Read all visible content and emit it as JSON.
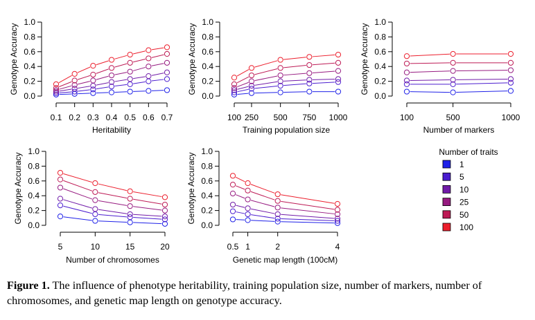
{
  "chart_data": [
    {
      "type": "line",
      "xlabel": "Heritability",
      "ylabel": "Genotype Accuracy",
      "x": [
        0.1,
        0.2,
        0.3,
        0.4,
        0.5,
        0.6,
        0.7
      ],
      "x_tick_labels": [
        "0.1",
        "0.2",
        "0.3",
        "0.4",
        "0.5",
        "0.6",
        "0.7"
      ],
      "xlim": [
        0.1,
        0.7
      ],
      "ylim": [
        0,
        1
      ],
      "y_ticks": [
        "0.0",
        "0.2",
        "0.4",
        "0.6",
        "0.8",
        "1.0"
      ],
      "series": [
        {
          "name": "1",
          "values": [
            0.02,
            0.03,
            0.04,
            0.05,
            0.06,
            0.07,
            0.08
          ]
        },
        {
          "name": "5",
          "values": [
            0.04,
            0.06,
            0.09,
            0.13,
            0.16,
            0.2,
            0.23
          ]
        },
        {
          "name": "10",
          "values": [
            0.06,
            0.1,
            0.14,
            0.19,
            0.23,
            0.27,
            0.32
          ]
        },
        {
          "name": "25",
          "values": [
            0.08,
            0.15,
            0.21,
            0.28,
            0.33,
            0.4,
            0.45
          ]
        },
        {
          "name": "50",
          "values": [
            0.11,
            0.21,
            0.29,
            0.38,
            0.45,
            0.51,
            0.57
          ]
        },
        {
          "name": "100",
          "values": [
            0.16,
            0.3,
            0.41,
            0.49,
            0.56,
            0.62,
            0.66
          ]
        }
      ]
    },
    {
      "type": "line",
      "xlabel": "Training population size",
      "ylabel": "Genotype Accuracy",
      "x": [
        100,
        250,
        500,
        750,
        1000
      ],
      "x_tick_labels": [
        "100",
        "250",
        "500",
        "750",
        "1000"
      ],
      "xlim": [
        100,
        1000
      ],
      "ylim": [
        0,
        1
      ],
      "y_ticks": [
        "0.0",
        "0.2",
        "0.4",
        "0.6",
        "0.8",
        "1.0"
      ],
      "series": [
        {
          "name": "1",
          "values": [
            0.02,
            0.04,
            0.05,
            0.06,
            0.06
          ]
        },
        {
          "name": "5",
          "values": [
            0.05,
            0.1,
            0.14,
            0.17,
            0.19
          ]
        },
        {
          "name": "10",
          "values": [
            0.08,
            0.14,
            0.2,
            0.22,
            0.23
          ]
        },
        {
          "name": "25",
          "values": [
            0.11,
            0.2,
            0.28,
            0.31,
            0.34
          ]
        },
        {
          "name": "50",
          "values": [
            0.16,
            0.28,
            0.38,
            0.42,
            0.45
          ]
        },
        {
          "name": "100",
          "values": [
            0.25,
            0.38,
            0.49,
            0.53,
            0.56
          ]
        }
      ]
    },
    {
      "type": "line",
      "xlabel": "Number of markers",
      "ylabel": "Genotype Accuracy",
      "x": [
        100,
        500,
        1000
      ],
      "x_tick_labels": [
        "100",
        "500",
        "1000"
      ],
      "xlim": [
        100,
        1000
      ],
      "ylim": [
        0,
        1
      ],
      "y_ticks": [
        "0.0",
        "0.2",
        "0.4",
        "0.6",
        "0.8",
        "1.0"
      ],
      "series": [
        {
          "name": "1",
          "values": [
            0.06,
            0.05,
            0.07
          ]
        },
        {
          "name": "5",
          "values": [
            0.16,
            0.16,
            0.18
          ]
        },
        {
          "name": "10",
          "values": [
            0.21,
            0.22,
            0.23
          ]
        },
        {
          "name": "25",
          "values": [
            0.32,
            0.34,
            0.35
          ]
        },
        {
          "name": "50",
          "values": [
            0.44,
            0.45,
            0.45
          ]
        },
        {
          "name": "100",
          "values": [
            0.54,
            0.57,
            0.57
          ]
        }
      ]
    },
    {
      "type": "line",
      "xlabel": "Number of chromosomes",
      "ylabel": "Genotype Accuracy",
      "x": [
        5,
        10,
        15,
        20
      ],
      "x_tick_labels": [
        "5",
        "10",
        "15",
        "20"
      ],
      "xlim": [
        5,
        20
      ],
      "ylim": [
        0,
        1
      ],
      "y_ticks": [
        "0.0",
        "0.2",
        "0.4",
        "0.6",
        "0.8",
        "1.0"
      ],
      "series": [
        {
          "name": "1",
          "values": [
            0.12,
            0.06,
            0.04,
            0.02
          ]
        },
        {
          "name": "5",
          "values": [
            0.27,
            0.15,
            0.11,
            0.08
          ]
        },
        {
          "name": "10",
          "values": [
            0.36,
            0.22,
            0.15,
            0.12
          ]
        },
        {
          "name": "25",
          "values": [
            0.51,
            0.34,
            0.26,
            0.2
          ]
        },
        {
          "name": "50",
          "values": [
            0.62,
            0.45,
            0.36,
            0.28
          ]
        },
        {
          "name": "100",
          "values": [
            0.71,
            0.57,
            0.46,
            0.38
          ]
        }
      ]
    },
    {
      "type": "line",
      "xlabel": "Genetic map length (100cM)",
      "ylabel": "Genotype Accuracy",
      "x": [
        0.5,
        1,
        2,
        4
      ],
      "x_tick_labels": [
        "0.5",
        "1",
        "2",
        "4"
      ],
      "xlim": [
        0.5,
        4
      ],
      "ylim": [
        0,
        1
      ],
      "y_ticks": [
        "0.0",
        "0.2",
        "0.4",
        "0.6",
        "0.8",
        "1.0"
      ],
      "series": [
        {
          "name": "1",
          "values": [
            0.08,
            0.07,
            0.05,
            0.03
          ]
        },
        {
          "name": "5",
          "values": [
            0.19,
            0.15,
            0.09,
            0.06
          ]
        },
        {
          "name": "10",
          "values": [
            0.28,
            0.23,
            0.15,
            0.09
          ]
        },
        {
          "name": "25",
          "values": [
            0.43,
            0.35,
            0.24,
            0.15
          ]
        },
        {
          "name": "50",
          "values": [
            0.55,
            0.47,
            0.33,
            0.21
          ]
        },
        {
          "name": "100",
          "values": [
            0.67,
            0.57,
            0.42,
            0.29
          ]
        }
      ]
    }
  ],
  "legend": {
    "title": "Number of traits",
    "entries": [
      "1",
      "5",
      "10",
      "25",
      "50",
      "100"
    ],
    "colors": [
      "#1e20e8",
      "#4a1ccf",
      "#701aa8",
      "#961a80",
      "#bd1a55",
      "#ec1e2c"
    ]
  },
  "caption": {
    "label": "Figure 1.",
    "text": " The influence of phenotype heritability, training population size, number of markers, number of chromosomes, and genetic map length on genotype accuracy."
  }
}
